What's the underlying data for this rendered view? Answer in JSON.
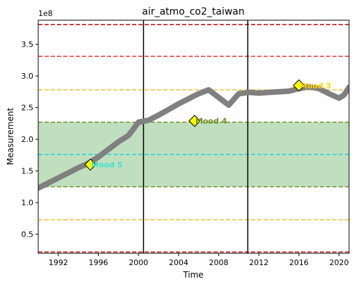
{
  "chart_data": {
    "type": "line",
    "title": "air_atmo_co2_taiwan",
    "xlabel": "Time",
    "ylabel": "Measurement",
    "y_multiplier_label": "1e8",
    "xlim": [
      1990,
      2021
    ],
    "ylim": [
      0.2,
      3.88
    ],
    "x_ticks": [
      1992,
      1996,
      2000,
      2004,
      2008,
      2012,
      2016,
      2020
    ],
    "x_tick_labels": [
      "1992",
      "1996",
      "2000",
      "2004",
      "2008",
      "2012",
      "2016",
      "2020"
    ],
    "y_ticks": [
      0.5,
      1.0,
      1.5,
      2.0,
      2.5,
      3.0,
      3.5
    ],
    "y_tick_labels": [
      "0.5",
      "1.0",
      "1.5",
      "2.0",
      "2.5",
      "3.0",
      "3.5"
    ],
    "grid": false,
    "series": [
      {
        "color": "#808080",
        "x": [
          1990,
          1991,
          1992,
          1993,
          1994,
          1995,
          1996,
          1997,
          1998,
          1999,
          2000,
          2001,
          2002,
          2003,
          2004,
          2005,
          2006,
          2007,
          2008,
          2009,
          2010,
          2011,
          2012,
          2013,
          2014,
          2015,
          2016,
          2017,
          2018,
          2019,
          2020,
          2020.5,
          2021
        ],
        "values": [
          1.23,
          1.31,
          1.39,
          1.47,
          1.55,
          1.62,
          1.72,
          1.84,
          1.96,
          2.06,
          2.27,
          2.3,
          2.38,
          2.47,
          2.56,
          2.64,
          2.72,
          2.78,
          2.66,
          2.54,
          2.72,
          2.74,
          2.73,
          2.74,
          2.75,
          2.76,
          2.8,
          2.83,
          2.8,
          2.72,
          2.65,
          2.7,
          2.82
        ]
      }
    ],
    "shaded_band": {
      "y_from": 1.25,
      "y_to": 2.27,
      "color": "#c0dfbf"
    },
    "hlines": [
      {
        "y": 3.81,
        "color": "#c00000"
      },
      {
        "y": 3.31,
        "color": "#e02020"
      },
      {
        "y": 2.78,
        "color": "#f0c030"
      },
      {
        "y": 2.27,
        "color": "#6b8e23"
      },
      {
        "y": 1.76,
        "color": "#20d0d0"
      },
      {
        "y": 1.25,
        "color": "#6b8e23"
      },
      {
        "y": 0.73,
        "color": "#f0c030"
      },
      {
        "y": 0.22,
        "color": "#c00000"
      }
    ],
    "vlines": [
      {
        "x": 2000.5,
        "color": "#000000"
      },
      {
        "x": 2010.9,
        "color": "#000000"
      }
    ],
    "annotations": [
      {
        "x": 1995.2,
        "y": 1.6,
        "text": "Mood 5",
        "color": "#40e0d0"
      },
      {
        "x": 2005.6,
        "y": 2.29,
        "text": "Mood 4",
        "color": "#6b8e23"
      },
      {
        "x": 2016.0,
        "y": 2.85,
        "text": "Mood 3",
        "color": "#ffd700"
      }
    ]
  }
}
